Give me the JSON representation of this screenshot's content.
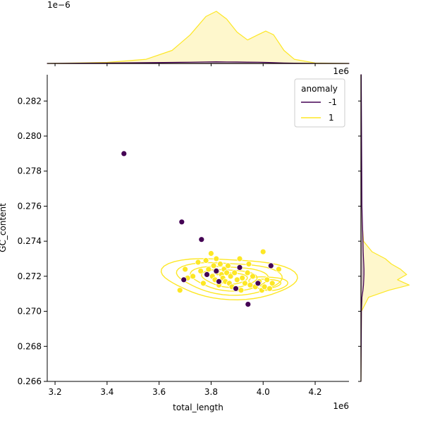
{
  "chart_data": {
    "type": "scatter",
    "subtype": "jointplot",
    "xlabel": "total_length",
    "ylabel": "GC_content",
    "x_offset_label": "1e6",
    "y_offset_label_top_marginal": "1e−6",
    "x_marginal_offset_label": "1e6",
    "xlim": [
      3.17,
      4.33
    ],
    "ylim": [
      0.266,
      0.2835
    ],
    "x_ticks": [
      3.2,
      3.4,
      3.6,
      3.8,
      4.0,
      4.2
    ],
    "x_tick_labels": [
      "3.2",
      "3.4",
      "3.6",
      "3.8",
      "4.0",
      "4.2"
    ],
    "y_ticks": [
      0.266,
      0.268,
      0.27,
      0.272,
      0.274,
      0.276,
      0.278,
      0.28,
      0.282
    ],
    "y_tick_labels": [
      "0.266",
      "0.268",
      "0.270",
      "0.272",
      "0.274",
      "0.276",
      "0.278",
      "0.280",
      "0.282"
    ],
    "grid": false,
    "legend": {
      "title": "anomaly",
      "placement": "top-right",
      "entries": [
        {
          "label": "-1",
          "color": "#440154"
        },
        {
          "label": "1",
          "color": "#fde725"
        }
      ]
    },
    "colors": {
      "anomaly_neg": "#440154",
      "anomaly_pos": "#fde725",
      "kde_fill_pos": "#fef6c6",
      "kde_fill_neg": "#c9b8c0"
    },
    "series": [
      {
        "name": "-1",
        "color": "#440154",
        "points": [
          [
            3.465,
            0.279
          ],
          [
            3.687,
            0.2751
          ],
          [
            3.763,
            0.2741
          ],
          [
            3.695,
            0.2718
          ],
          [
            3.784,
            0.2721
          ],
          [
            3.82,
            0.2723
          ],
          [
            3.83,
            0.2717
          ],
          [
            3.895,
            0.2713
          ],
          [
            3.91,
            0.2725
          ],
          [
            3.942,
            0.2704
          ],
          [
            3.98,
            0.2716
          ],
          [
            4.03,
            0.2726
          ]
        ]
      },
      {
        "name": "1",
        "color": "#fde725",
        "points": [
          [
            3.68,
            0.2712
          ],
          [
            3.7,
            0.2724
          ],
          [
            3.71,
            0.2719
          ],
          [
            3.73,
            0.272
          ],
          [
            3.75,
            0.2728
          ],
          [
            3.76,
            0.2723
          ],
          [
            3.77,
            0.2716
          ],
          [
            3.78,
            0.2729
          ],
          [
            3.79,
            0.2724
          ],
          [
            3.8,
            0.2733
          ],
          [
            3.805,
            0.272
          ],
          [
            3.81,
            0.2726
          ],
          [
            3.815,
            0.2718
          ],
          [
            3.82,
            0.273
          ],
          [
            3.825,
            0.2722
          ],
          [
            3.83,
            0.2715
          ],
          [
            3.835,
            0.2727
          ],
          [
            3.84,
            0.2721
          ],
          [
            3.845,
            0.2719
          ],
          [
            3.85,
            0.2724
          ],
          [
            3.855,
            0.2717
          ],
          [
            3.86,
            0.2722
          ],
          [
            3.865,
            0.2726
          ],
          [
            3.87,
            0.2716
          ],
          [
            3.875,
            0.272
          ],
          [
            3.88,
            0.2714
          ],
          [
            3.89,
            0.2722
          ],
          [
            3.9,
            0.2718
          ],
          [
            3.91,
            0.273
          ],
          [
            3.915,
            0.2712
          ],
          [
            3.92,
            0.2719
          ],
          [
            3.93,
            0.2716
          ],
          [
            3.94,
            0.2722
          ],
          [
            3.945,
            0.2727
          ],
          [
            3.95,
            0.2715
          ],
          [
            3.96,
            0.272
          ],
          [
            3.97,
            0.2714
          ],
          [
            3.985,
            0.2717
          ],
          [
            3.995,
            0.2712
          ],
          [
            4.0,
            0.2734
          ],
          [
            4.005,
            0.2714
          ],
          [
            4.015,
            0.2718
          ],
          [
            4.025,
            0.2713
          ],
          [
            4.035,
            0.2716
          ],
          [
            4.06,
            0.2724
          ]
        ]
      }
    ],
    "kde_contours_pos": {
      "center": [
        3.87,
        0.2719
      ],
      "levels": [
        {
          "rx": 0.245,
          "ry": 0.0012
        },
        {
          "rx": 0.19,
          "ry": 0.00095
        },
        {
          "rx": 0.14,
          "ry": 0.00072
        },
        {
          "rx": 0.1,
          "ry": 0.00052
        },
        {
          "rx": 0.065,
          "ry": 0.00034
        }
      ],
      "secondary": {
        "center": [
          4.02,
          0.2716
        ],
        "levels": [
          {
            "rx": 0.07,
            "ry": 0.0004
          },
          {
            "rx": 0.045,
            "ry": 0.00025
          }
        ]
      }
    },
    "marginal_x": {
      "x": [
        3.17,
        3.4,
        3.55,
        3.65,
        3.72,
        3.78,
        3.82,
        3.86,
        3.9,
        3.94,
        3.98,
        4.01,
        4.04,
        4.08,
        4.12,
        4.2,
        4.33
      ],
      "density_pos": [
        0.0,
        0.02,
        0.08,
        0.25,
        0.55,
        0.9,
        1.0,
        0.85,
        0.6,
        0.45,
        0.55,
        0.62,
        0.55,
        0.25,
        0.08,
        0.01,
        0.0
      ],
      "density_neg": [
        0.0,
        0.01,
        0.015,
        0.02,
        0.025,
        0.03,
        0.032,
        0.03,
        0.028,
        0.026,
        0.024,
        0.02,
        0.016,
        0.01,
        0.006,
        0.002,
        0.0
      ]
    },
    "marginal_y": {
      "y": [
        0.266,
        0.27,
        0.2708,
        0.2712,
        0.2715,
        0.2718,
        0.2721,
        0.2724,
        0.2727,
        0.273,
        0.2734,
        0.274,
        0.276,
        0.2835
      ],
      "density_pos": [
        0.0,
        0.01,
        0.15,
        0.55,
        0.95,
        0.72,
        0.9,
        0.78,
        0.6,
        0.48,
        0.22,
        0.05,
        0.0,
        0.0
      ],
      "density_neg": [
        0.0,
        0.01,
        0.02,
        0.04,
        0.05,
        0.055,
        0.06,
        0.06,
        0.055,
        0.05,
        0.045,
        0.04,
        0.02,
        0.005
      ]
    }
  }
}
